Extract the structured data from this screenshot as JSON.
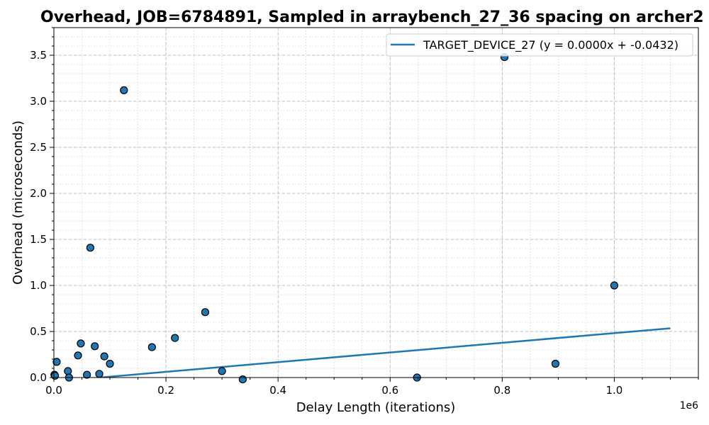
{
  "chart_data": {
    "type": "scatter",
    "title": "Overhead, JOB=6784891, Sampled in arraybench_27_36 spacing on archer2",
    "xlabel": "Delay Length (iterations)",
    "ylabel": "Overhead (microseconds)",
    "x_offset_label": "1e6",
    "xlim": [
      0,
      1150000
    ],
    "ylim": [
      0,
      3.8
    ],
    "x_ticks": [
      0,
      200000,
      400000,
      600000,
      800000,
      1000000
    ],
    "x_tick_labels": [
      "0.0",
      "0.2",
      "0.4",
      "0.6",
      "0.8",
      "1.0"
    ],
    "y_ticks": [
      0,
      0.5,
      1.0,
      1.5,
      2.0,
      2.5,
      3.0,
      3.5
    ],
    "y_tick_labels": [
      "0.0",
      "0.5",
      "1.0",
      "1.5",
      "2.0",
      "2.5",
      "3.0",
      "3.5"
    ],
    "grid": true,
    "minor_grid": true,
    "legend_position": "top-right",
    "point_color": "#1f77b4",
    "line_color": "#1f77b4",
    "points": [
      {
        "x": 1000,
        "y": 0.03
      },
      {
        "x": 2000,
        "y": 0.02
      },
      {
        "x": 5000,
        "y": 0.17
      },
      {
        "x": 25000,
        "y": 0.07
      },
      {
        "x": 27000,
        "y": 0.0
      },
      {
        "x": 43000,
        "y": 0.24
      },
      {
        "x": 48000,
        "y": 0.37
      },
      {
        "x": 59000,
        "y": 0.03
      },
      {
        "x": 65000,
        "y": 1.41
      },
      {
        "x": 73000,
        "y": 0.34
      },
      {
        "x": 81000,
        "y": 0.04
      },
      {
        "x": 90000,
        "y": 0.23
      },
      {
        "x": 100000,
        "y": 0.15
      },
      {
        "x": 125000,
        "y": 3.12
      },
      {
        "x": 175000,
        "y": 0.33
      },
      {
        "x": 216000,
        "y": 0.43
      },
      {
        "x": 270000,
        "y": 0.71
      },
      {
        "x": 300000,
        "y": 0.07
      },
      {
        "x": 337000,
        "y": -0.02
      },
      {
        "x": 648000,
        "y": 0.0
      },
      {
        "x": 804000,
        "y": 3.48
      },
      {
        "x": 895000,
        "y": 0.15
      },
      {
        "x": 1000000,
        "y": 1.0
      }
    ],
    "series": [
      {
        "name": "TARGET_DEVICE_27 (y = 0.0000x + -0.0432)",
        "type": "line",
        "x": [
          0,
          1100000
        ],
        "y": [
          -0.0432,
          0.535
        ]
      }
    ]
  }
}
